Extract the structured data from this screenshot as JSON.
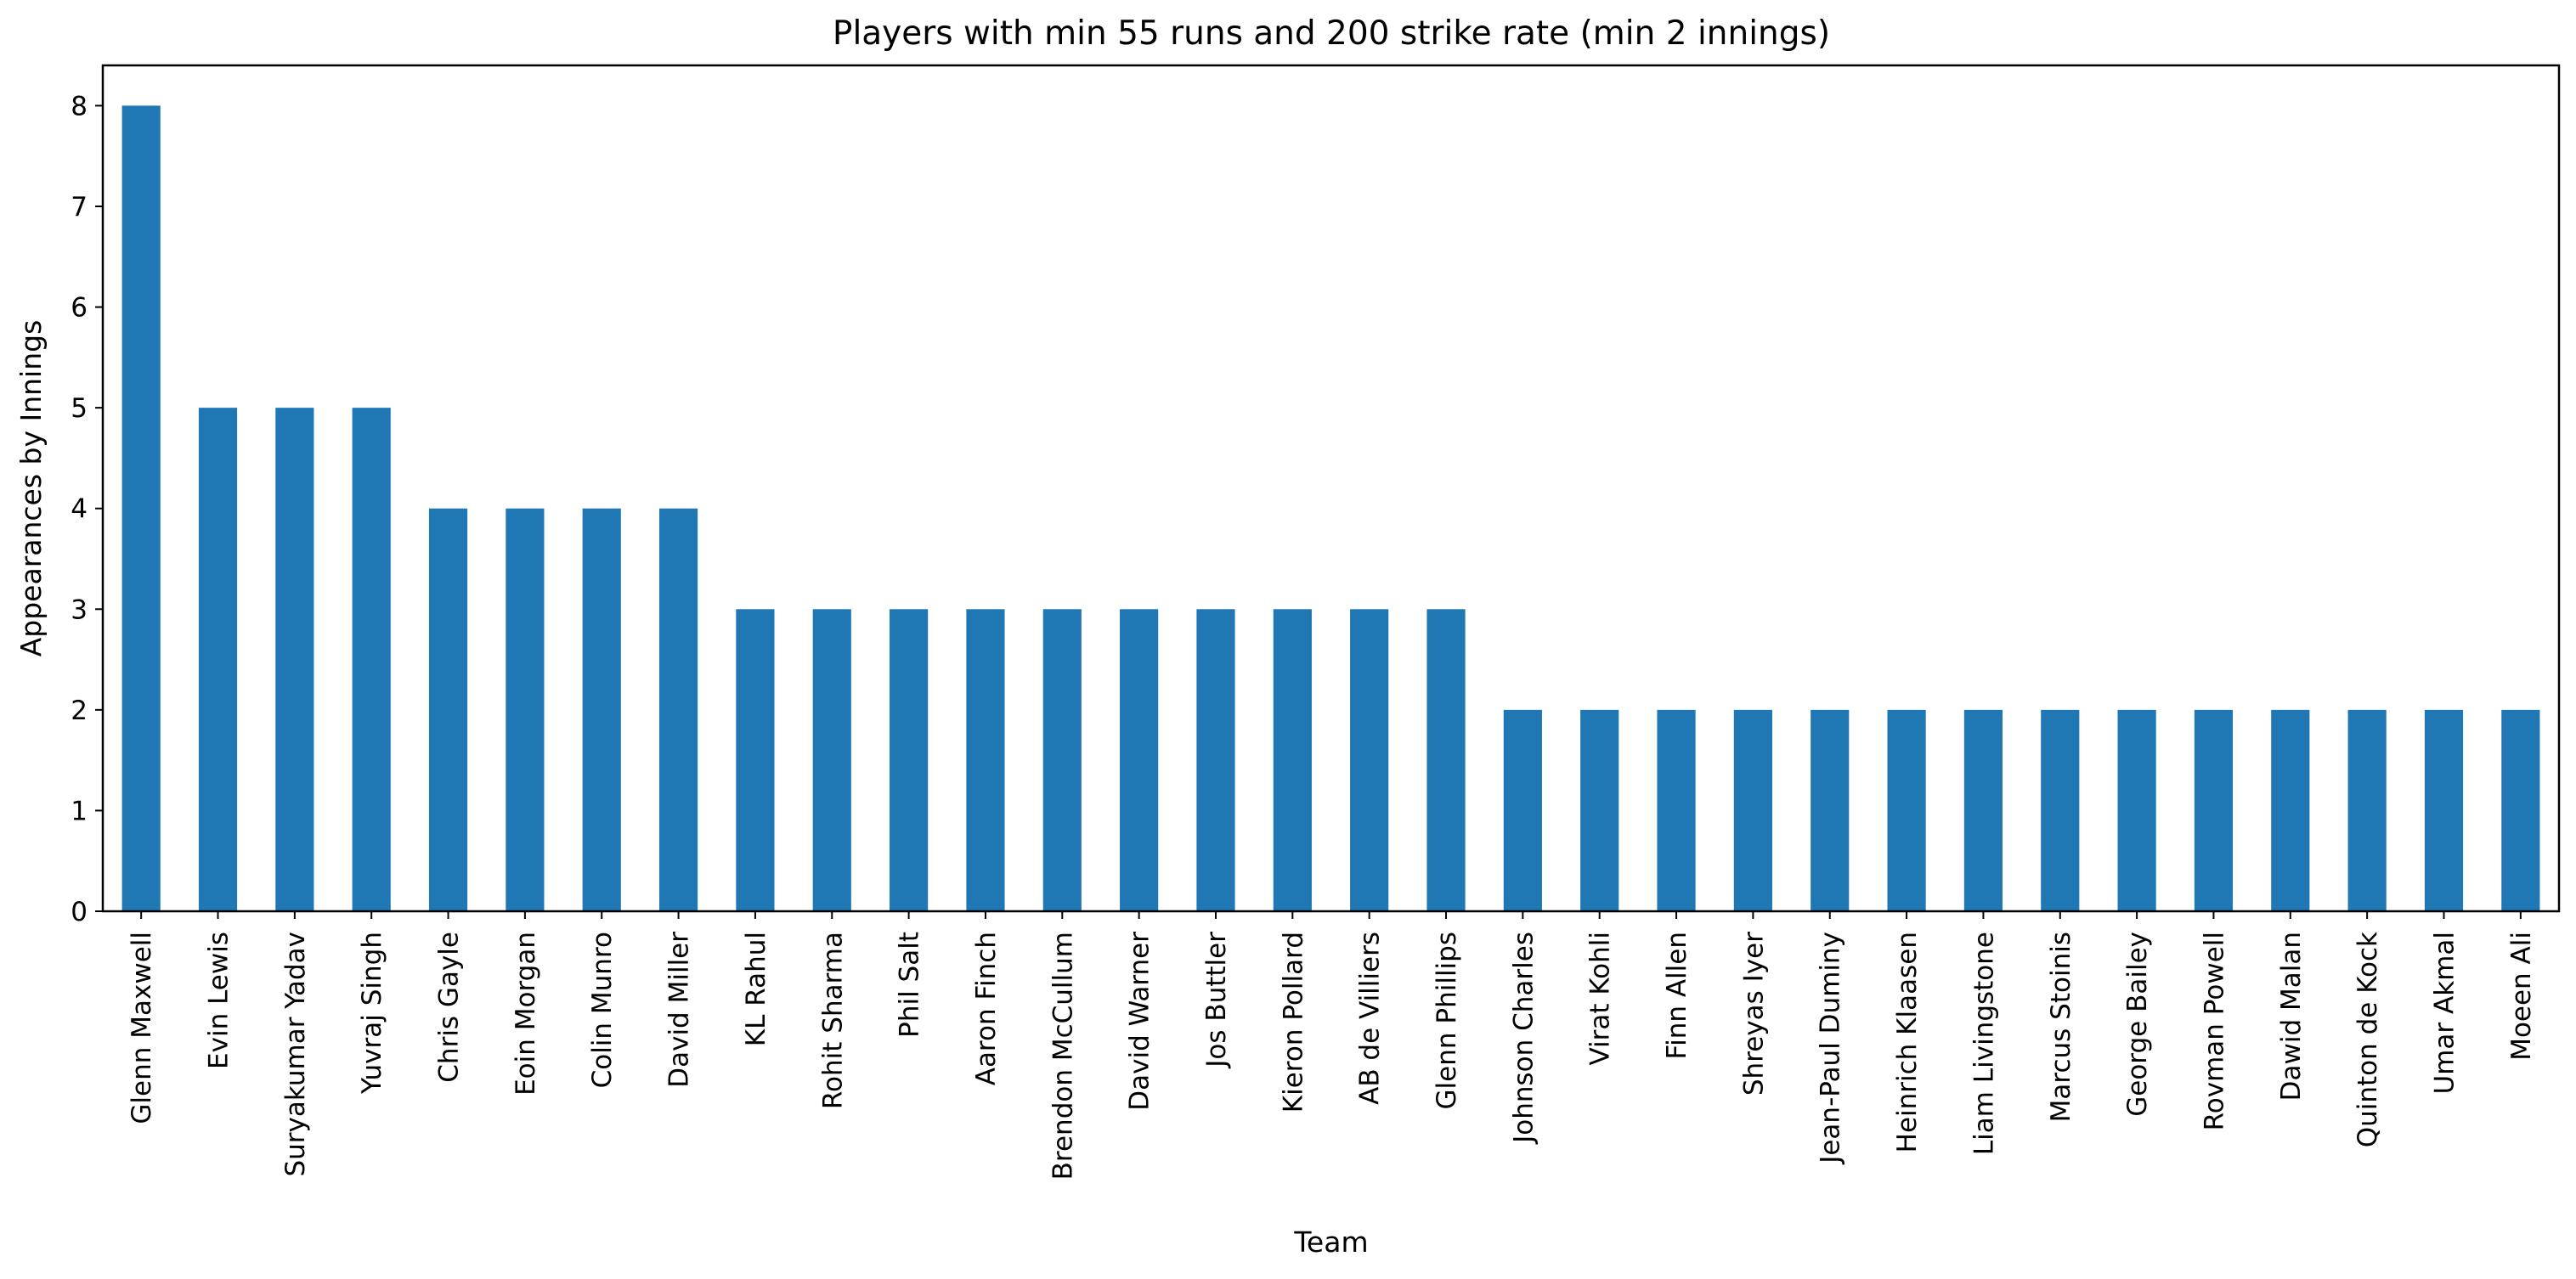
{
  "chart_data": {
    "type": "bar",
    "title": "Players with min 55 runs and 200 strike rate (min 2 innings)",
    "xlabel": "Team",
    "ylabel": "Appearances by Innings",
    "ylim": [
      0,
      8.4
    ],
    "yticks": [
      0,
      1,
      2,
      3,
      4,
      5,
      6,
      7,
      8
    ],
    "grid": false,
    "bar_color": "#1f77b4",
    "categories": [
      "Glenn Maxwell",
      "Evin Lewis",
      "Suryakumar Yadav",
      "Yuvraj Singh",
      "Chris Gayle",
      "Eoin Morgan",
      "Colin Munro",
      "David Miller",
      "KL Rahul",
      "Rohit Sharma",
      "Phil Salt",
      "Aaron Finch",
      "Brendon McCullum",
      "David Warner",
      "Jos Buttler",
      "Kieron Pollard",
      "AB de Villiers",
      "Glenn Phillips",
      "Johnson Charles",
      "Virat Kohli",
      "Finn Allen",
      "Shreyas Iyer",
      "Jean-Paul Duminy",
      "Heinrich Klaasen",
      "Liam Livingstone",
      "Marcus Stoinis",
      "George Bailey",
      "Rovman Powell",
      "Dawid Malan",
      "Quinton de Kock",
      "Umar Akmal",
      "Moeen Ali"
    ],
    "values": [
      8,
      5,
      5,
      5,
      4,
      4,
      4,
      4,
      3,
      3,
      3,
      3,
      3,
      3,
      3,
      3,
      3,
      3,
      2,
      2,
      2,
      2,
      2,
      2,
      2,
      2,
      2,
      2,
      2,
      2,
      2,
      2
    ]
  }
}
